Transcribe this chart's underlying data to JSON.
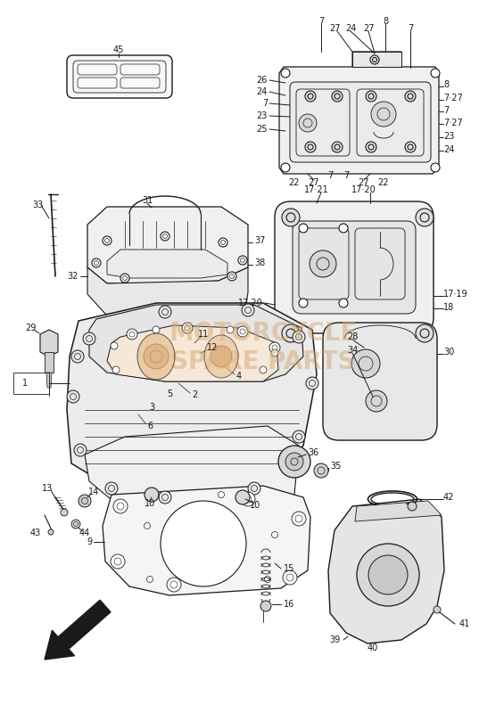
{
  "bg_color": "#ffffff",
  "line_color": "#1a1a1a",
  "label_fontsize": 7.0,
  "figsize": [
    5.65,
    8.0
  ],
  "dpi": 100,
  "watermark_color": "#d4a870",
  "watermark_alpha": 0.5
}
